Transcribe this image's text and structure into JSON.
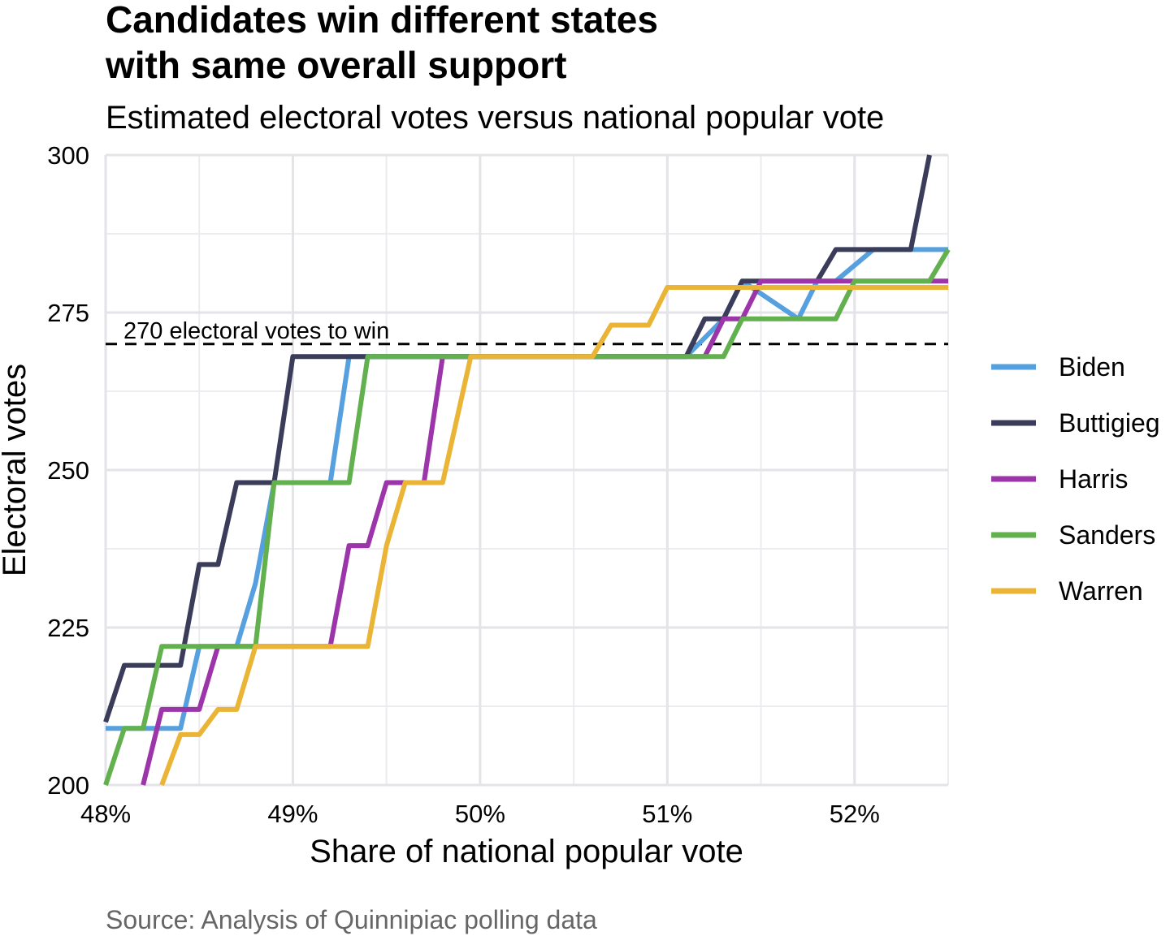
{
  "chart_data": {
    "type": "line",
    "title": "Candidates win different states\nwith same overall support",
    "subtitle": "Estimated electoral votes versus national popular vote",
    "caption": "Source: Analysis of Quinnipiac polling data",
    "xlabel": "Share of national popular vote",
    "ylabel": "Electoral votes",
    "xlim": [
      48.0,
      52.5
    ],
    "ylim": [
      200,
      300
    ],
    "x_ticks": [
      48,
      49,
      50,
      51,
      52
    ],
    "x_tick_labels": [
      "48%",
      "49%",
      "50%",
      "51%",
      "52%"
    ],
    "y_ticks": [
      200,
      225,
      250,
      275,
      300
    ],
    "y_tick_labels": [
      "200",
      "225",
      "250",
      "275",
      "300"
    ],
    "grid": true,
    "legend_position": "right",
    "reference_line": {
      "y": 270,
      "label": "270 electoral votes to win",
      "style": "dashed"
    },
    "series": [
      {
        "name": "Biden",
        "color": "#56a0df",
        "points": [
          [
            48.0,
            209
          ],
          [
            48.4,
            209
          ],
          [
            48.5,
            222
          ],
          [
            48.7,
            222
          ],
          [
            48.8,
            232
          ],
          [
            48.9,
            248
          ],
          [
            49.2,
            248
          ],
          [
            49.3,
            268
          ],
          [
            49.45,
            268
          ],
          [
            50.0,
            268
          ],
          [
            51.1,
            268
          ],
          [
            51.3,
            274
          ],
          [
            51.4,
            280
          ],
          [
            51.7,
            274
          ],
          [
            51.8,
            280
          ],
          [
            51.9,
            280
          ],
          [
            52.1,
            285
          ],
          [
            52.5,
            285
          ]
        ]
      },
      {
        "name": "Buttigieg",
        "color": "#3a3c5a",
        "points": [
          [
            48.0,
            210
          ],
          [
            48.1,
            219
          ],
          [
            48.4,
            219
          ],
          [
            48.5,
            235
          ],
          [
            48.6,
            235
          ],
          [
            48.7,
            248
          ],
          [
            48.9,
            248
          ],
          [
            49.0,
            268
          ],
          [
            49.5,
            268
          ],
          [
            50.0,
            268
          ],
          [
            51.1,
            268
          ],
          [
            51.2,
            274
          ],
          [
            51.3,
            274
          ],
          [
            51.4,
            280
          ],
          [
            51.7,
            280
          ],
          [
            51.8,
            280
          ],
          [
            51.9,
            285
          ],
          [
            52.3,
            285
          ],
          [
            52.4,
            300
          ]
        ]
      },
      {
        "name": "Harris",
        "color": "#9b35a9",
        "points": [
          [
            48.2,
            200
          ],
          [
            48.3,
            212
          ],
          [
            48.5,
            212
          ],
          [
            48.6,
            222
          ],
          [
            49.2,
            222
          ],
          [
            49.3,
            238
          ],
          [
            49.4,
            238
          ],
          [
            49.5,
            248
          ],
          [
            49.7,
            248
          ],
          [
            49.8,
            268
          ],
          [
            50.0,
            268
          ],
          [
            51.1,
            268
          ],
          [
            51.2,
            268
          ],
          [
            51.3,
            274
          ],
          [
            51.4,
            274
          ],
          [
            51.5,
            280
          ],
          [
            52.5,
            280
          ]
        ]
      },
      {
        "name": "Sanders",
        "color": "#62b04e",
        "points": [
          [
            48.0,
            200
          ],
          [
            48.1,
            209
          ],
          [
            48.2,
            209
          ],
          [
            48.3,
            222
          ],
          [
            48.8,
            222
          ],
          [
            48.9,
            248
          ],
          [
            49.3,
            248
          ],
          [
            49.4,
            268
          ],
          [
            50.0,
            268
          ],
          [
            51.0,
            268
          ],
          [
            51.3,
            268
          ],
          [
            51.4,
            274
          ],
          [
            51.9,
            274
          ],
          [
            52.0,
            280
          ],
          [
            52.4,
            280
          ],
          [
            52.5,
            285
          ]
        ]
      },
      {
        "name": "Warren",
        "color": "#eab536",
        "points": [
          [
            48.3,
            200
          ],
          [
            48.4,
            208
          ],
          [
            48.5,
            208
          ],
          [
            48.6,
            212
          ],
          [
            48.7,
            212
          ],
          [
            48.8,
            222
          ],
          [
            49.4,
            222
          ],
          [
            49.5,
            238
          ],
          [
            49.6,
            248
          ],
          [
            49.8,
            248
          ],
          [
            49.95,
            268
          ],
          [
            50.0,
            268
          ],
          [
            50.6,
            268
          ],
          [
            50.7,
            273
          ],
          [
            50.9,
            273
          ],
          [
            51.0,
            279
          ],
          [
            52.5,
            279
          ]
        ]
      }
    ]
  }
}
